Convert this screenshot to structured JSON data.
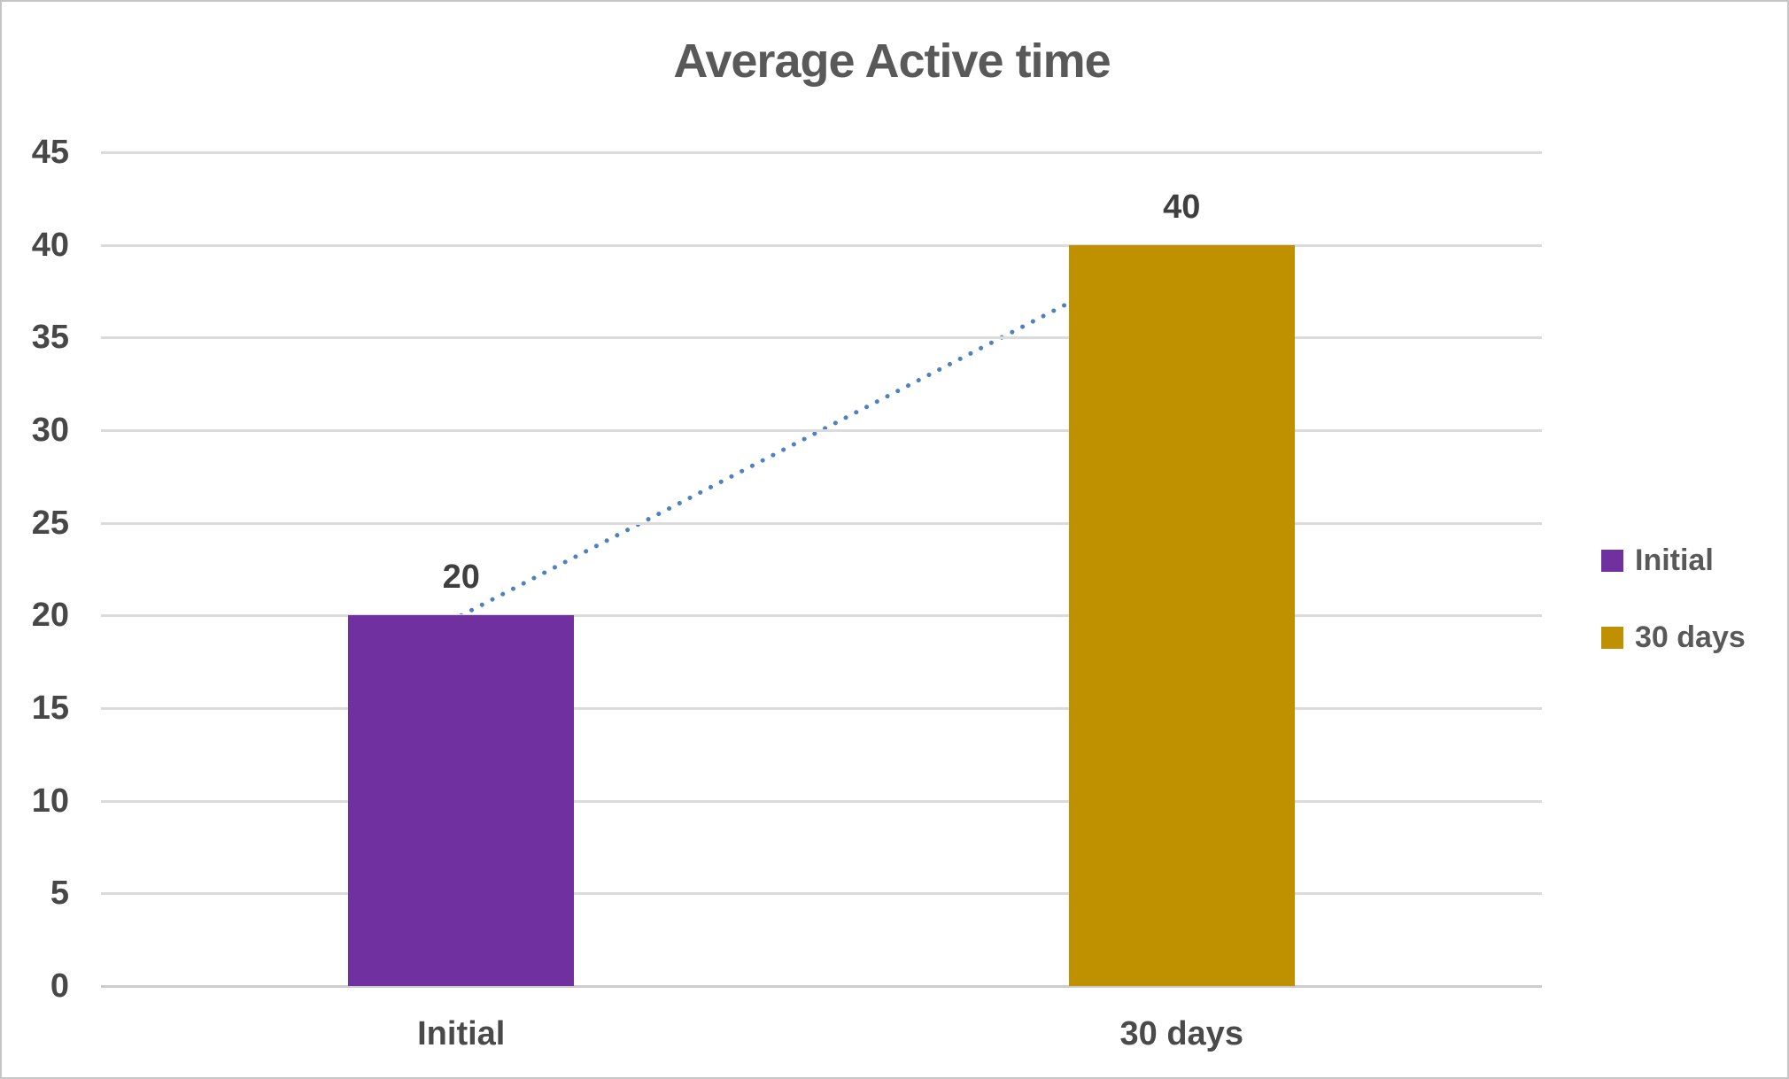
{
  "chart_data": {
    "type": "bar",
    "title": "Average Active time",
    "categories": [
      "Initial",
      "30 days"
    ],
    "values": [
      20,
      40
    ],
    "data_labels": [
      "20",
      "40"
    ],
    "bar_colors": [
      "#7030A0",
      "#BF9000"
    ],
    "xlabel": "",
    "ylabel": "",
    "ylim": [
      0,
      45
    ],
    "y_ticks": [
      0,
      5,
      10,
      15,
      20,
      25,
      30,
      35,
      40,
      45
    ],
    "grid": "horizontal-only",
    "legend_position": "right",
    "legend": [
      {
        "label": "Initial",
        "color": "#7030A0"
      },
      {
        "label": "30 days",
        "color": "#BF9000"
      }
    ],
    "trendline": {
      "style": "dotted",
      "color": "#4E81BD",
      "points_category_value": [
        [
          0,
          20
        ],
        [
          1,
          40
        ]
      ]
    }
  },
  "style_colors": {
    "gridline": "#DBDBDB",
    "zero_line": "#CCCCCC",
    "title_text": "#595959",
    "tick_text": "#474747",
    "data_label_text": "#3F3F3F",
    "legend_text": "#595959",
    "canvas_border": "#C5C5C5",
    "background": "#FFFFFF"
  }
}
